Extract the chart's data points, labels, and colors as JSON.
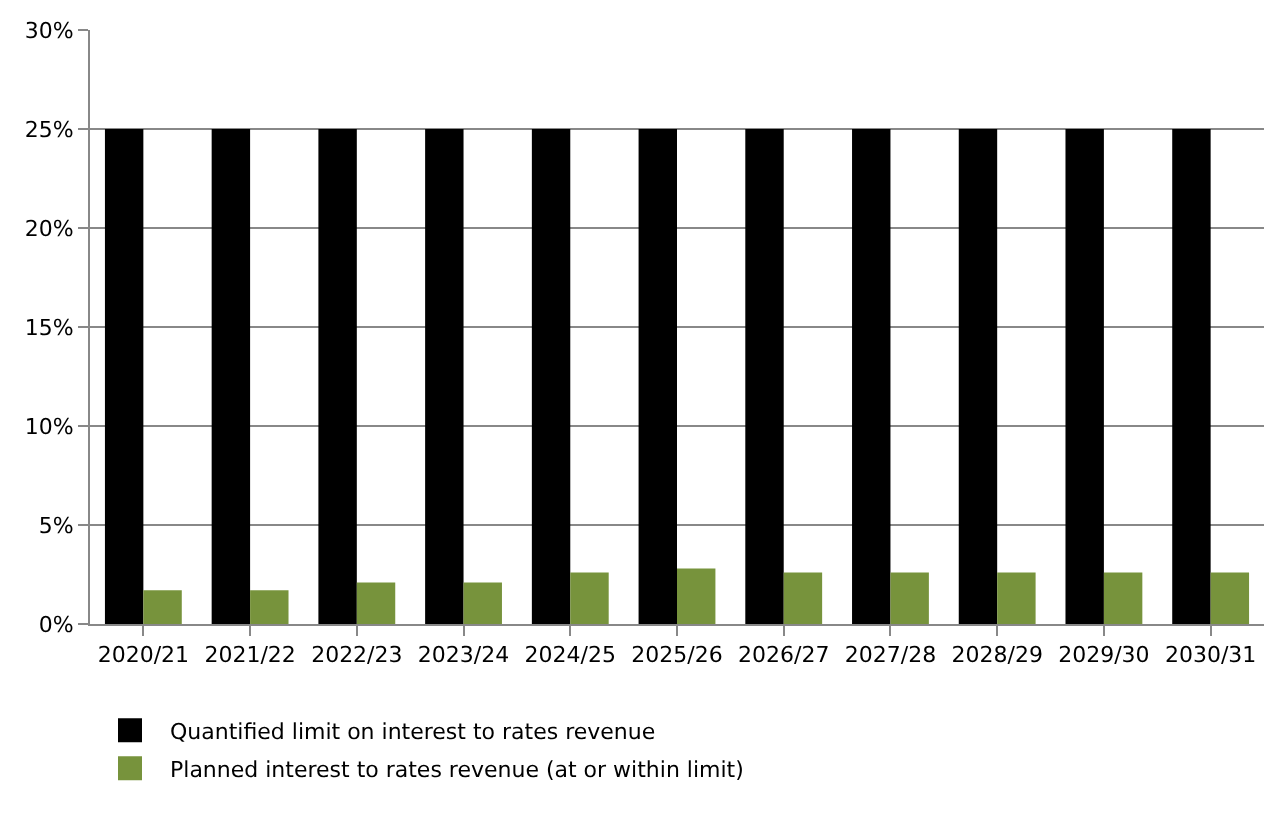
{
  "chart_data": {
    "type": "bar",
    "categories": [
      "2020/21",
      "2021/22",
      "2022/23",
      "2023/24",
      "2024/25",
      "2025/26",
      "2026/27",
      "2027/28",
      "2028/29",
      "2029/30",
      "2030/31"
    ],
    "series": [
      {
        "name": "Quantified limit on interest to rates revenue",
        "color": "#000000",
        "values": [
          25,
          25,
          25,
          25,
          25,
          25,
          25,
          25,
          25,
          25,
          25
        ]
      },
      {
        "name": "Planned interest to rates revenue (at or within limit)",
        "color": "#77933c",
        "values": [
          1.7,
          1.7,
          2.1,
          2.1,
          2.6,
          2.8,
          2.6,
          2.6,
          2.6,
          2.6,
          2.6
        ]
      }
    ],
    "ylim": [
      0,
      30
    ],
    "yticks": [
      {
        "value": 0,
        "label": "0%"
      },
      {
        "value": 5,
        "label": "5%"
      },
      {
        "value": 10,
        "label": "10%"
      },
      {
        "value": 15,
        "label": "15%"
      },
      {
        "value": 20,
        "label": "20%"
      },
      {
        "value": 25,
        "label": "25%"
      },
      {
        "value": 30,
        "label": "30%"
      }
    ],
    "grid": "y",
    "legend": "bottom"
  }
}
